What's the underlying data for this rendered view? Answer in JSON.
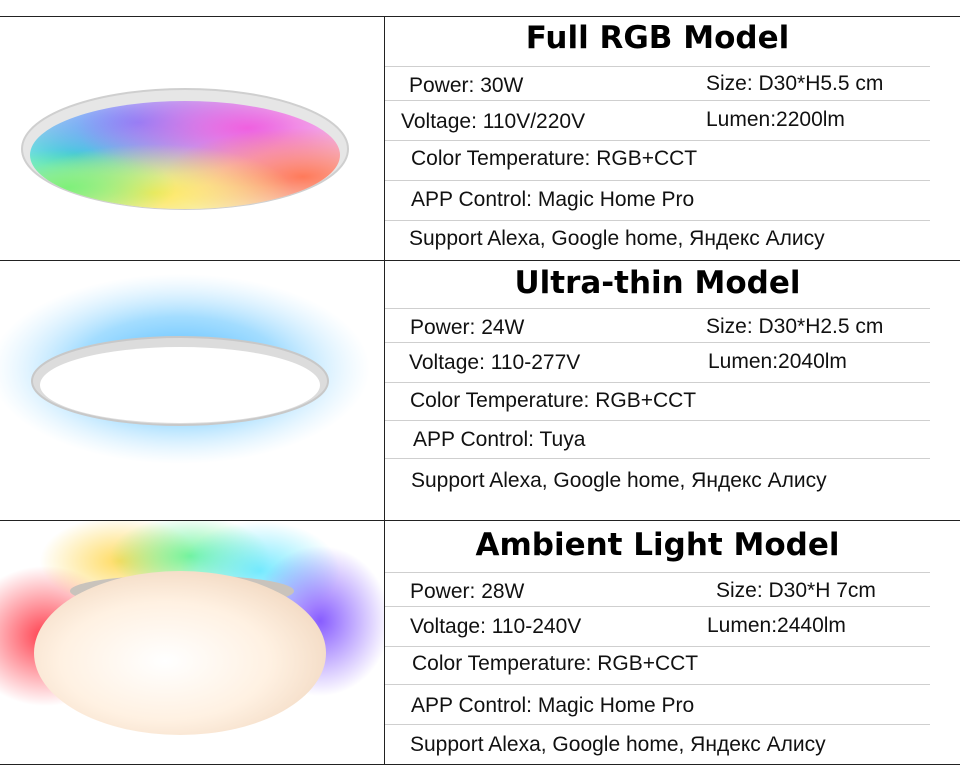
{
  "models": [
    {
      "title": "Full RGB Model",
      "power": "Power: 30W",
      "size": "Size: D30*H5.5 cm",
      "voltage": "Voltage: 110V/220V",
      "lumen": "Lumen:2200lm",
      "color_temp": "Color Temperature: RGB+CCT",
      "app": "APP Control: Magic Home Pro",
      "support": "Support Alexa, Google home, Яндекс Алису",
      "image": "rgb-ceiling-lamp"
    },
    {
      "title": "Ultra-thin Model",
      "power": "Power: 24W",
      "size": "Size: D30*H2.5 cm",
      "voltage": "Voltage: 110-277V",
      "lumen": "Lumen:2040lm",
      "color_temp": "Color Temperature: RGB+CCT",
      "app": "APP Control: Tuya",
      "support": "Support Alexa, Google home, Яндекс Алису",
      "image": "ultra-thin-ceiling-lamp"
    },
    {
      "title": "Ambient Light Model",
      "power": "Power: 28W",
      "size": "Size: D30*H 7cm",
      "voltage": "Voltage: 110-240V",
      "lumen": "Lumen:2440lm",
      "color_temp": "Color Temperature: RGB+CCT",
      "app": "APP Control: Magic Home Pro",
      "support": "Support Alexa, Google home, Яндекс Алису",
      "image": "ambient-ceiling-lamp"
    }
  ]
}
